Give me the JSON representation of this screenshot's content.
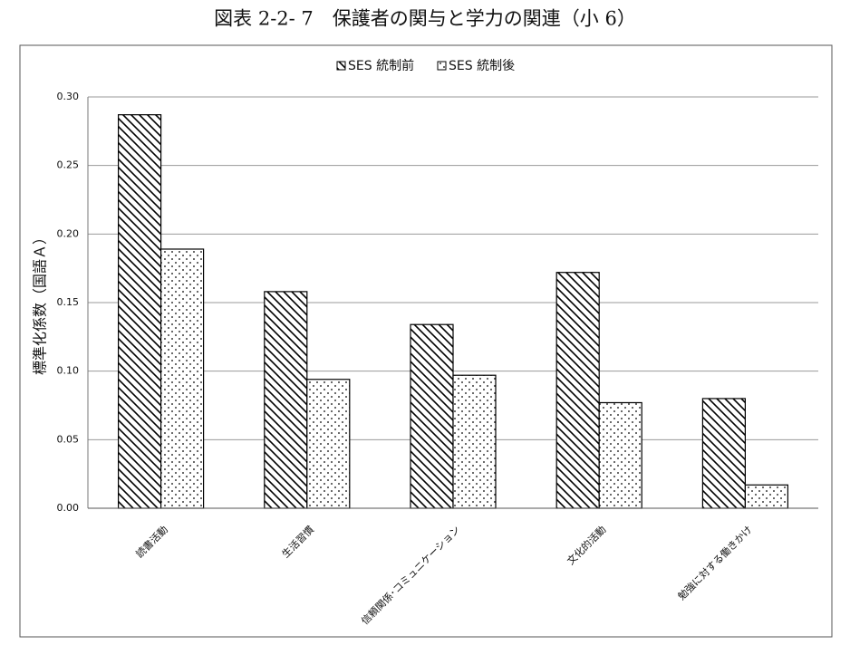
{
  "chart_data": {
    "type": "bar",
    "title": "図表 2-2- 7　保護者の関与と学力の関連（小 6）",
    "y_label": "標準化係数（国語Ａ）",
    "categories": [
      "読書活動",
      "生活習慣",
      "信頼関係･コミュニケーション",
      "文化的活動",
      "勉強に対する働きかけ"
    ],
    "series": [
      {
        "name": "SES 統制前",
        "color": "#000000",
        "pattern": "hatch",
        "values": [
          0.287,
          0.158,
          0.134,
          0.172,
          0.08
        ]
      },
      {
        "name": "SES 統制後",
        "color": "#000000",
        "pattern": "dots",
        "values": [
          0.189,
          0.094,
          0.097,
          0.077,
          0.017
        ]
      }
    ],
    "ylim": [
      0,
      0.3
    ],
    "yticks": [
      {
        "value": 0,
        "label": "0.00"
      },
      {
        "value": 0.05,
        "label": "0.05"
      },
      {
        "value": 0.1,
        "label": "0.10"
      },
      {
        "value": 0.15,
        "label": "0.15"
      },
      {
        "value": 0.2,
        "label": "0.20"
      },
      {
        "value": 0.25,
        "label": "0.25"
      },
      {
        "value": 0.3,
        "label": "0.30"
      }
    ],
    "grid": true,
    "legend": "top"
  }
}
